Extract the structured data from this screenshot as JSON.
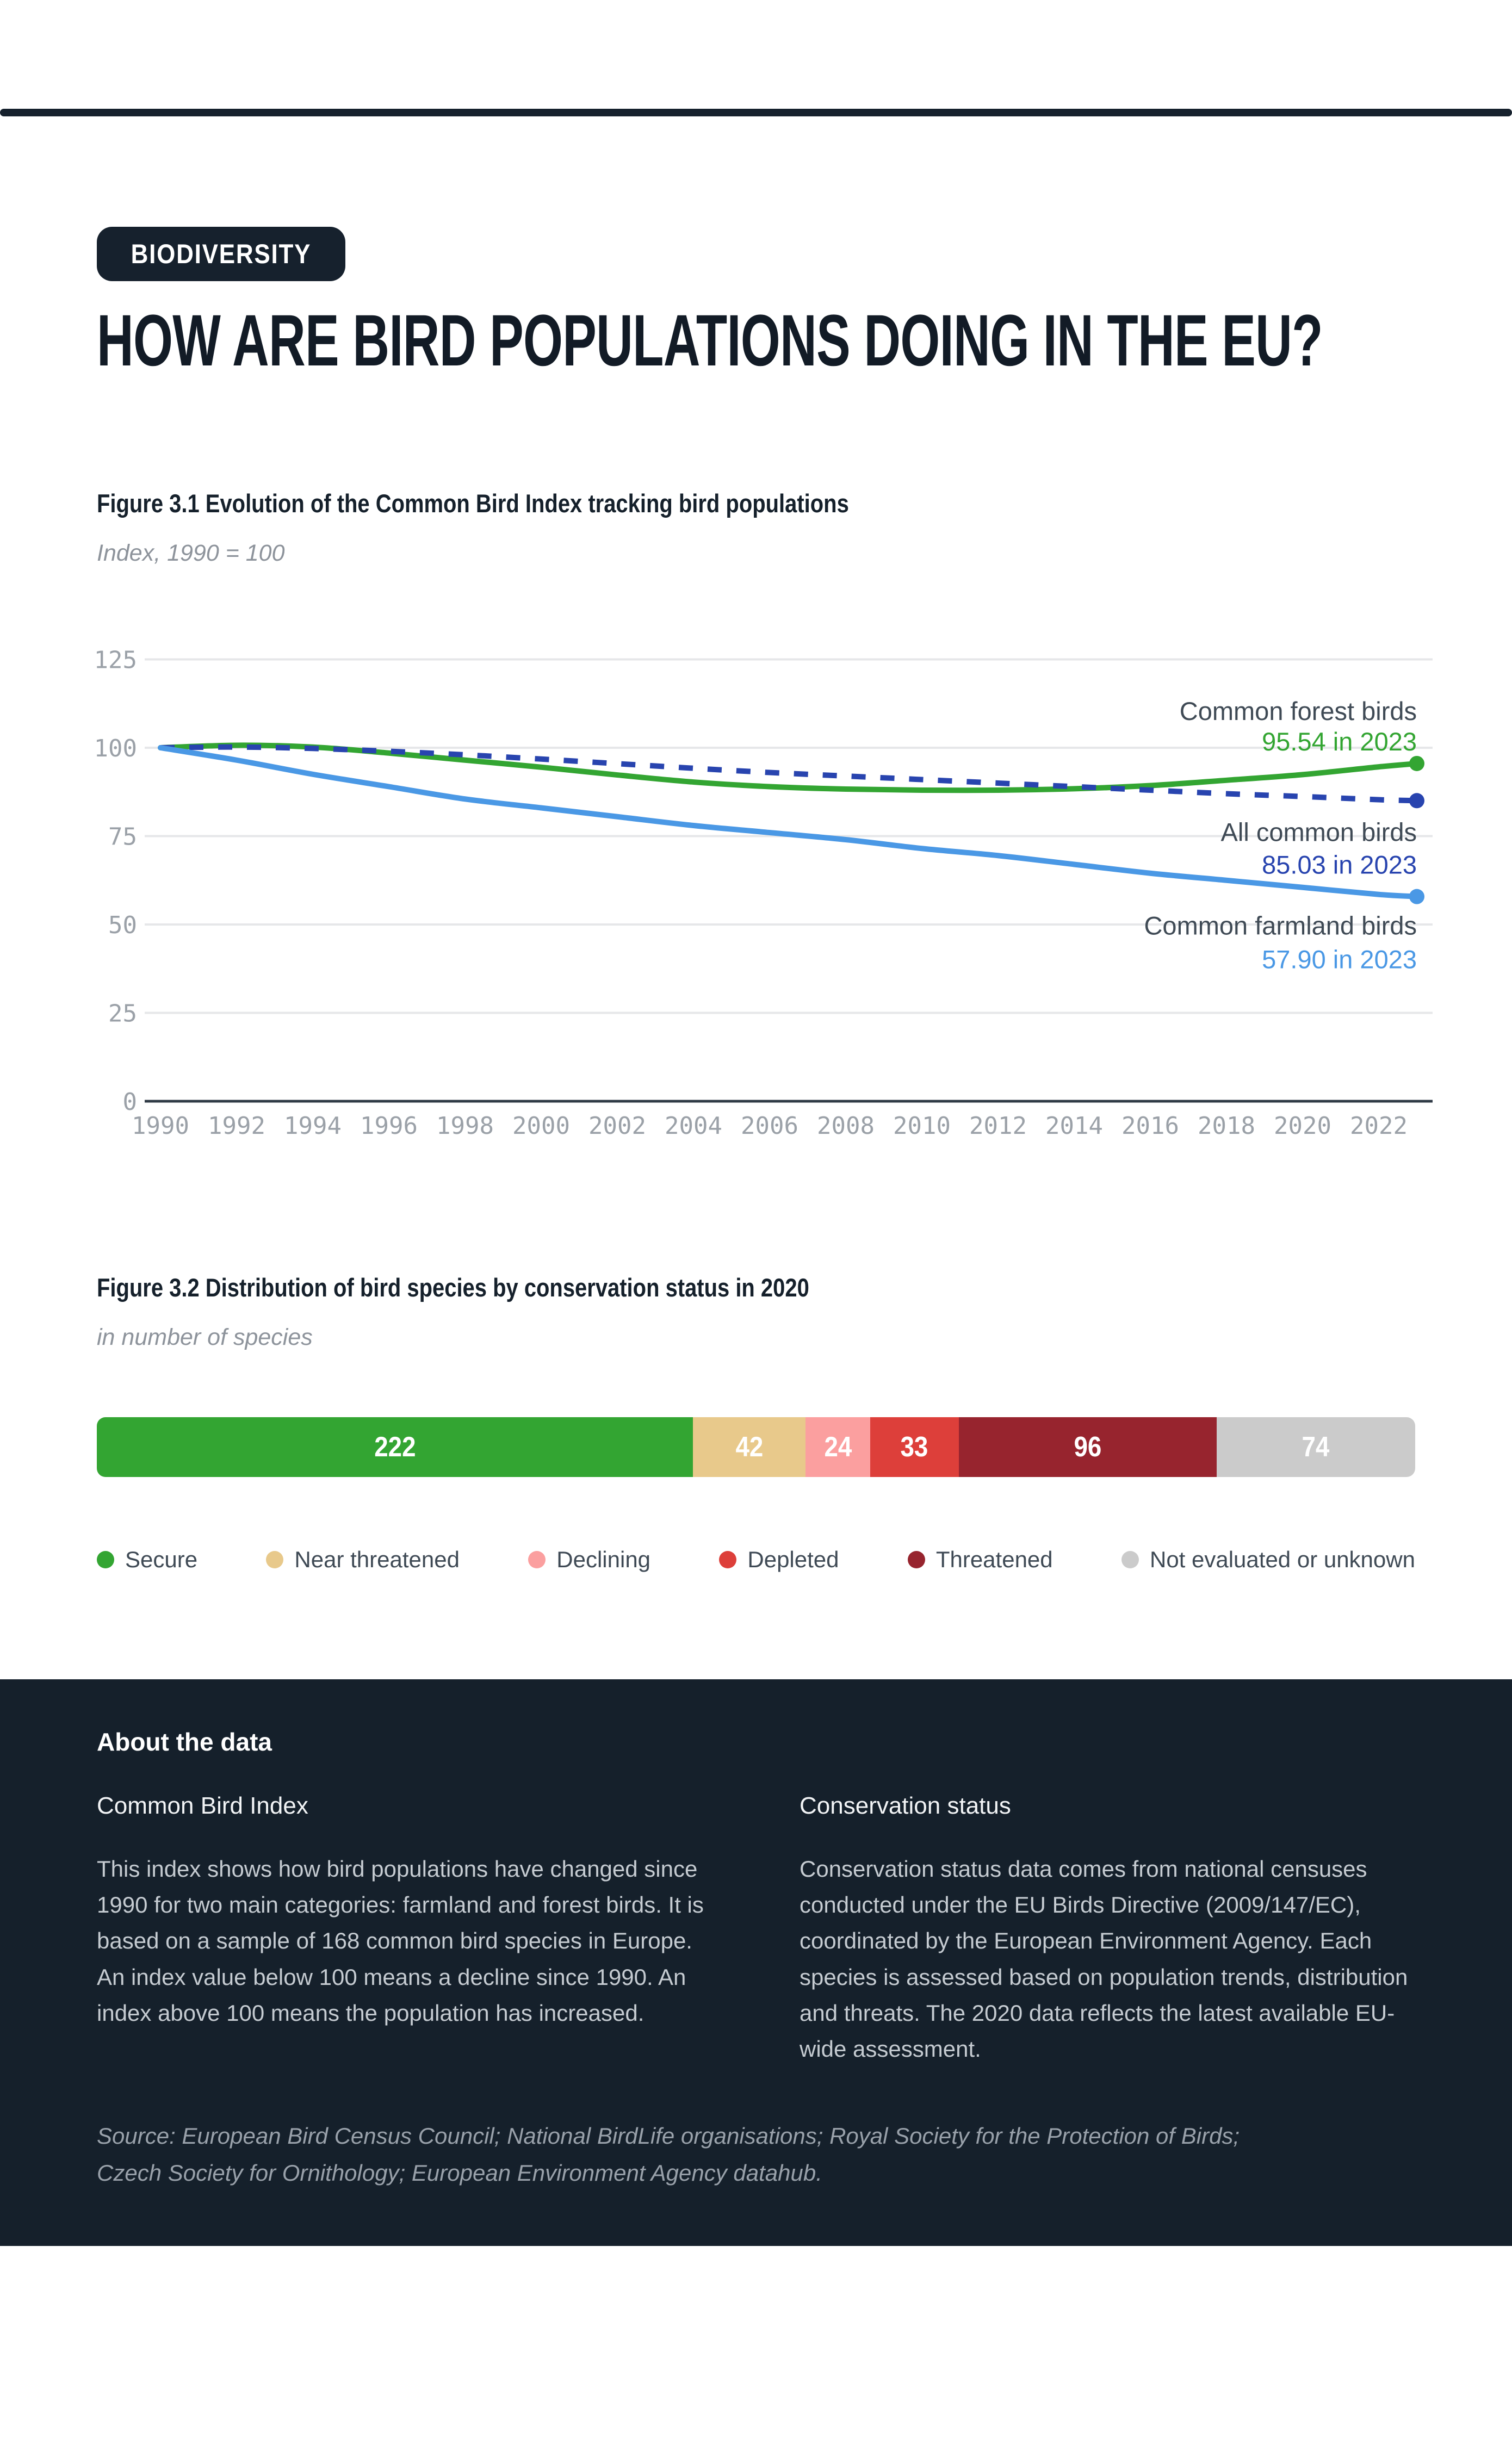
{
  "header": {
    "badge": "BIODIVERSITY",
    "title": "HOW ARE BIRD POPULATIONS DOING IN THE EU?"
  },
  "figure1": {
    "title": "Figure 3.1 Evolution of the Common Bird Index tracking bird populations",
    "subtitle": "Index, 1990 = 100"
  },
  "figure2": {
    "title": "Figure 3.2 Distribution of bird species by conservation status in 2020",
    "subtitle": "in number of species"
  },
  "chart_data": [
    {
      "type": "line",
      "title": "Figure 3.1 Evolution of the Common Bird Index tracking bird populations",
      "ylabel": "Index, 1990 = 100",
      "ylim": [
        0,
        125
      ],
      "y_ticks": [
        0,
        25,
        50,
        75,
        100,
        125
      ],
      "x_ticks": [
        1990,
        1992,
        1994,
        1996,
        1998,
        2000,
        2002,
        2004,
        2006,
        2008,
        2010,
        2012,
        2014,
        2016,
        2018,
        2020,
        2022
      ],
      "x_range": [
        1990,
        2023
      ],
      "grid": true,
      "axis_color": "#9ba1a8",
      "gridline_color": "#e6e7e9",
      "zero_axis_color": "#2f3a45",
      "x": [
        1990,
        1992,
        1994,
        1996,
        1998,
        2000,
        2002,
        2004,
        2006,
        2008,
        2010,
        2012,
        2014,
        2016,
        2018,
        2020,
        2022,
        2023
      ],
      "series": [
        {
          "name": "Common forest birds",
          "color": "#33a532",
          "style": "solid",
          "values": [
            100,
            100.7,
            100.2,
            98.5,
            96.5,
            94.5,
            92.3,
            90.3,
            89,
            88.3,
            88,
            88,
            88.4,
            89.3,
            90.8,
            92.4,
            94.6,
            95.54
          ],
          "end_value": "95.54",
          "end_label": "95.54 in 2023"
        },
        {
          "name": "All common birds",
          "color": "#2844af",
          "style": "dashed",
          "values": [
            100,
            100.2,
            99.8,
            99,
            98,
            96.8,
            95.5,
            94.2,
            93,
            92,
            91,
            90,
            89,
            88,
            87,
            86.2,
            85.3,
            85.03
          ],
          "end_value": "85.03",
          "end_label": "85.03 in 2023"
        },
        {
          "name": "Common farmland birds",
          "color": "#4a98e5",
          "style": "solid",
          "values": [
            100,
            96.5,
            92.5,
            89,
            85.5,
            83,
            80.5,
            78,
            76,
            74,
            71.5,
            69.5,
            67,
            64.5,
            62.5,
            60.5,
            58.5,
            57.9
          ],
          "end_value": "57.90",
          "end_label": "57.90 in 2023"
        }
      ],
      "label_color": "#3f4a55"
    },
    {
      "type": "bar",
      "stacked": true,
      "title": "Figure 3.2 Distribution of bird species by conservation status in 2020",
      "subtitle": "in number of species",
      "categories": [
        "Secure",
        "Near threatened",
        "Declining",
        "Depleted",
        "Threatened",
        "Not evaluated or unknown"
      ],
      "values": [
        222,
        42,
        24,
        33,
        96,
        74
      ],
      "colors": [
        "#33a532",
        "#e8c98b",
        "#fb9f9f",
        "#dd3f3a",
        "#97242e",
        "#cbcbcb"
      ]
    }
  ],
  "legend": {
    "items": [
      {
        "label": "Secure",
        "color": "#33a532"
      },
      {
        "label": "Near threatened",
        "color": "#e8c98b"
      },
      {
        "label": "Declining",
        "color": "#fb9f9f"
      },
      {
        "label": "Depleted",
        "color": "#dd3f3a"
      },
      {
        "label": "Threatened",
        "color": "#97242e"
      },
      {
        "label": "Not evaluated or unknown",
        "color": "#cbcbcb"
      }
    ]
  },
  "about": {
    "heading": "About the data",
    "columns": [
      {
        "heading": "Common Bird Index",
        "text": "This index shows how bird populations have changed since 1990 for two main categories: farmland and forest birds. It is based on a sample of 168 common bird species in Europe. An index value below 100 means a decline since 1990. An index above 100 means the population has increased."
      },
      {
        "heading": "Conservation status",
        "text": "Conservation status data comes from national censuses conducted under the EU Birds Directive (2009/147/EC), coordinated by the European Environment Agency. Each species is assessed based on population trends, distribution and threats. The 2020 data reflects the latest available EU-wide assessment."
      }
    ],
    "source_label": "Source:",
    "source_text": " European Bird Census Council; National BirdLife organisations; Royal Society for the Protection of Birds; Czech Society for Ornithology; European Environment Agency datahub."
  }
}
